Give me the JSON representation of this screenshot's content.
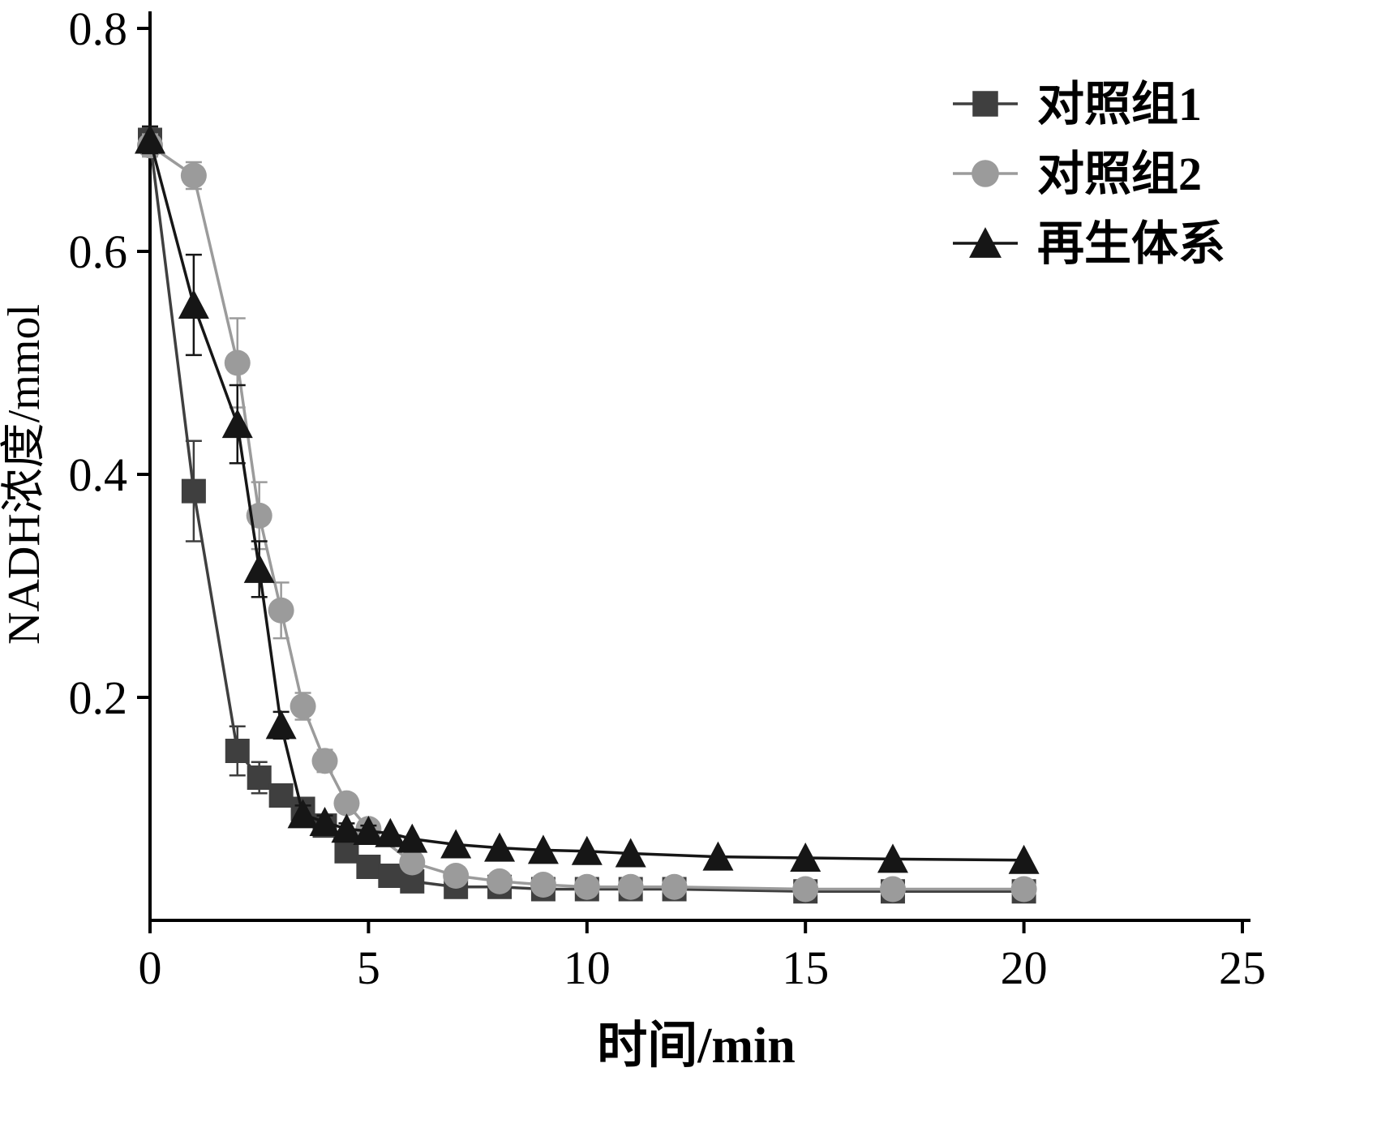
{
  "figure": {
    "background": "#ffffff"
  },
  "chart_data": {
    "type": "line",
    "title": "",
    "xlabel": "时间/min",
    "ylabel": "NADH浓度/mmol",
    "xlim": [
      0,
      25
    ],
    "ylim": [
      0,
      0.8
    ],
    "x_ticks": [
      0,
      5,
      10,
      15,
      20,
      25
    ],
    "y_ticks": [
      0.2,
      0.4,
      0.6,
      0.8
    ],
    "grid": false,
    "legend_position": "top-right",
    "legend_entries": [
      "对照组1",
      "对照组2",
      "再生体系"
    ],
    "series": [
      {
        "name": "对照组1",
        "marker": "square",
        "color": "#3f3f3f",
        "x": [
          0,
          1,
          2,
          2.5,
          3,
          3.5,
          4,
          4.5,
          5,
          5.5,
          6,
          7,
          8,
          9,
          10,
          11,
          12,
          15,
          17,
          20
        ],
        "values": [
          0.7,
          0.385,
          0.152,
          0.128,
          0.112,
          0.1,
          0.085,
          0.062,
          0.048,
          0.04,
          0.035,
          0.03,
          0.03,
          0.028,
          0.028,
          0.028,
          0.028,
          0.026,
          0.026,
          0.026
        ],
        "errors": [
          0.012,
          0.045,
          0.022,
          0.014,
          0.01,
          0.008,
          0.006,
          0,
          0,
          0,
          0,
          0,
          0,
          0,
          0,
          0,
          0,
          0,
          0,
          0
        ]
      },
      {
        "name": "对照组2",
        "marker": "circle",
        "color": "#9b9b9b",
        "x": [
          0,
          1,
          2,
          2.5,
          3,
          3.5,
          4,
          4.5,
          5,
          6,
          7,
          8,
          9,
          10,
          11,
          12,
          15,
          17,
          20
        ],
        "values": [
          0.695,
          0.668,
          0.5,
          0.363,
          0.278,
          0.192,
          0.143,
          0.105,
          0.082,
          0.052,
          0.04,
          0.035,
          0.032,
          0.03,
          0.03,
          0.03,
          0.028,
          0.028,
          0.028
        ],
        "errors": [
          0.01,
          0.012,
          0.04,
          0.03,
          0.025,
          0.012,
          0.01,
          0.008,
          0.006,
          0,
          0,
          0,
          0,
          0,
          0,
          0,
          0,
          0,
          0
        ]
      },
      {
        "name": "再生体系",
        "marker": "triangle",
        "color": "#161616",
        "x": [
          0,
          1,
          2,
          2.5,
          3,
          3.5,
          4,
          4.5,
          5,
          5.5,
          6,
          7,
          8,
          9,
          10,
          11,
          13,
          15,
          17,
          20
        ],
        "values": [
          0.7,
          0.552,
          0.445,
          0.315,
          0.175,
          0.095,
          0.088,
          0.082,
          0.08,
          0.078,
          0.073,
          0.068,
          0.065,
          0.063,
          0.062,
          0.06,
          0.057,
          0.056,
          0.055,
          0.054
        ],
        "errors": [
          0.012,
          0.045,
          0.035,
          0.025,
          0.012,
          0.008,
          0.006,
          0.005,
          0.005,
          0,
          0,
          0,
          0,
          0,
          0,
          0,
          0,
          0,
          0,
          0
        ]
      }
    ]
  }
}
